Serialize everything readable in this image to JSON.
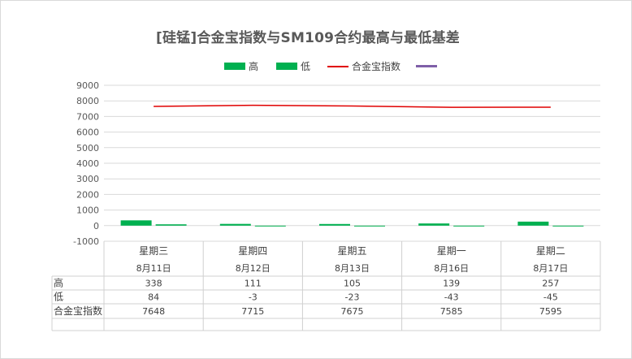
{
  "chart_data": {
    "type": "bar",
    "title": "[硅锰]合金宝指数与SM109合约最高与最低基差",
    "categories": [
      {
        "weekday": "星期三",
        "date": "8月11日"
      },
      {
        "weekday": "星期四",
        "date": "8月12日"
      },
      {
        "weekday": "星期五",
        "date": "8月13日"
      },
      {
        "weekday": "星期一",
        "date": "8月16日"
      },
      {
        "weekday": "星期二",
        "date": "8月17日"
      }
    ],
    "series": [
      {
        "name": "高",
        "kind": "bar",
        "color": "#00b050",
        "values": [
          338,
          111,
          105,
          139,
          257
        ]
      },
      {
        "name": "低",
        "kind": "bar",
        "color": "#00b050",
        "values": [
          84,
          -3,
          -23,
          -43,
          -45
        ]
      },
      {
        "name": "合金宝指数",
        "kind": "line",
        "color": "#e00000",
        "values": [
          7648,
          7715,
          7675,
          7585,
          7595
        ]
      }
    ],
    "extra_legend_color": "#7f5fa8",
    "ylim": [
      -1000,
      9000
    ],
    "yticks": [
      "9000",
      "8000",
      "7000",
      "6000",
      "5000",
      "4000",
      "3000",
      "2000",
      "1000",
      "0",
      "-1000"
    ],
    "grid": true,
    "legend_position": "top",
    "data_table": true
  }
}
